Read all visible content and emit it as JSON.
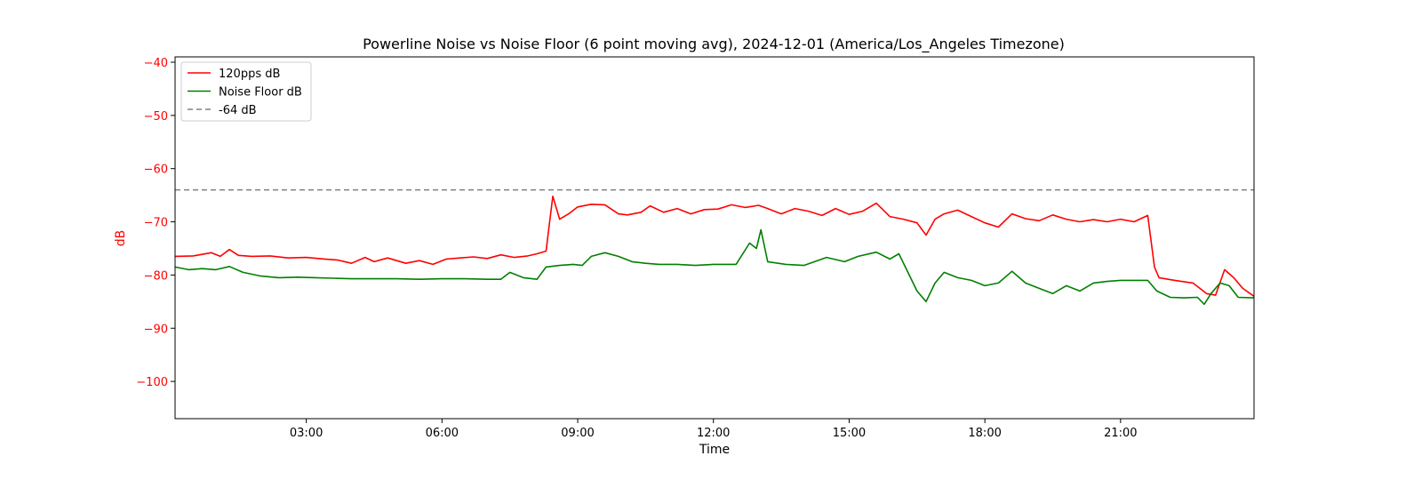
{
  "chart_data": {
    "type": "line",
    "title": "Powerline Noise vs Noise Floor (6 point moving avg), 2024-12-01 (America/Los_Angeles Timezone)",
    "xlabel": "Time",
    "ylabel": "dB",
    "xlim_hours": [
      0.1,
      23.95
    ],
    "ylim": [
      -107,
      -39
    ],
    "x_ticks": [
      {
        "hour": 3,
        "label": "03:00"
      },
      {
        "hour": 6,
        "label": "06:00"
      },
      {
        "hour": 9,
        "label": "09:00"
      },
      {
        "hour": 12,
        "label": "12:00"
      },
      {
        "hour": 15,
        "label": "15:00"
      },
      {
        "hour": 18,
        "label": "18:00"
      },
      {
        "hour": 21,
        "label": "21:00"
      }
    ],
    "y_ticks": [
      -40,
      -50,
      -60,
      -70,
      -80,
      -90,
      -100
    ],
    "y_tick_labels": [
      "−40",
      "−50",
      "−60",
      "−70",
      "−80",
      "−90",
      "−100"
    ],
    "grid": false,
    "legend_position": "top-left",
    "colors": {
      "series_1": "#ff0000",
      "series_2": "#008000",
      "reference": "#808080",
      "y_axis_label": "#ff0000"
    },
    "series": [
      {
        "name": "120pps dB",
        "color": "#ff0000",
        "style": "solid",
        "x": [
          0.1,
          0.5,
          0.9,
          1.1,
          1.3,
          1.5,
          1.8,
          2.2,
          2.6,
          3.0,
          3.4,
          3.7,
          4.0,
          4.3,
          4.5,
          4.8,
          5.2,
          5.5,
          5.8,
          6.1,
          6.4,
          6.7,
          7.0,
          7.3,
          7.6,
          7.9,
          8.1,
          8.3,
          8.45,
          8.6,
          8.8,
          9.0,
          9.3,
          9.6,
          9.9,
          10.1,
          10.4,
          10.6,
          10.9,
          11.2,
          11.5,
          11.8,
          12.1,
          12.4,
          12.7,
          13.0,
          13.2,
          13.5,
          13.8,
          14.1,
          14.4,
          14.7,
          15.0,
          15.3,
          15.6,
          15.9,
          16.2,
          16.5,
          16.7,
          16.9,
          17.1,
          17.4,
          17.7,
          18.0,
          18.3,
          18.6,
          18.9,
          19.2,
          19.5,
          19.8,
          20.1,
          20.4,
          20.7,
          21.0,
          21.3,
          21.6,
          21.75,
          21.85,
          22.2,
          22.6,
          22.9,
          23.1,
          23.3,
          23.5,
          23.7,
          23.95
        ],
        "y": [
          -76.5,
          -76.4,
          -75.8,
          -76.5,
          -75.2,
          -76.3,
          -76.5,
          -76.4,
          -76.8,
          -76.7,
          -77.0,
          -77.2,
          -77.8,
          -76.7,
          -77.5,
          -76.8,
          -77.8,
          -77.3,
          -78.0,
          -77.0,
          -76.8,
          -76.6,
          -76.9,
          -76.2,
          -76.7,
          -76.4,
          -76.0,
          -75.5,
          -65.2,
          -69.5,
          -68.5,
          -67.2,
          -66.7,
          -66.8,
          -68.5,
          -68.7,
          -68.2,
          -67.0,
          -68.2,
          -67.5,
          -68.5,
          -67.7,
          -67.6,
          -66.8,
          -67.3,
          -66.9,
          -67.5,
          -68.5,
          -67.5,
          -68.0,
          -68.8,
          -67.5,
          -68.6,
          -68.0,
          -66.5,
          -69.0,
          -69.5,
          -70.2,
          -72.5,
          -69.5,
          -68.5,
          -67.8,
          -69.0,
          -70.2,
          -71.0,
          -68.5,
          -69.4,
          -69.8,
          -68.7,
          -69.5,
          -70.0,
          -69.6,
          -70.0,
          -69.5,
          -70.0,
          -68.8,
          -78.5,
          -80.5,
          -81.0,
          -81.5,
          -83.5,
          -83.8,
          -79.0,
          -80.5,
          -82.5,
          -84.0
        ]
      },
      {
        "name": "Noise Floor dB",
        "color": "#008000",
        "style": "solid",
        "x": [
          0.1,
          0.4,
          0.7,
          1.0,
          1.3,
          1.6,
          2.0,
          2.4,
          2.8,
          3.2,
          3.6,
          4.0,
          4.5,
          5.0,
          5.5,
          6.0,
          6.5,
          7.0,
          7.3,
          7.5,
          7.8,
          8.1,
          8.3,
          8.6,
          8.9,
          9.1,
          9.3,
          9.6,
          9.9,
          10.2,
          10.5,
          10.8,
          11.2,
          11.6,
          12.0,
          12.5,
          12.8,
          12.95,
          13.05,
          13.2,
          13.6,
          14.0,
          14.5,
          14.9,
          15.2,
          15.6,
          15.9,
          16.1,
          16.3,
          16.5,
          16.7,
          16.9,
          17.1,
          17.4,
          17.7,
          18.0,
          18.3,
          18.6,
          18.9,
          19.2,
          19.5,
          19.8,
          20.1,
          20.4,
          20.7,
          21.0,
          21.3,
          21.6,
          21.8,
          22.1,
          22.4,
          22.7,
          22.85,
          23.0,
          23.2,
          23.4,
          23.6,
          23.95
        ],
        "y": [
          -78.5,
          -79.0,
          -78.8,
          -79.0,
          -78.4,
          -79.5,
          -80.2,
          -80.5,
          -80.4,
          -80.5,
          -80.6,
          -80.7,
          -80.7,
          -80.7,
          -80.8,
          -80.7,
          -80.7,
          -80.8,
          -80.8,
          -79.5,
          -80.5,
          -80.8,
          -78.5,
          -78.2,
          -78.0,
          -78.2,
          -76.5,
          -75.8,
          -76.5,
          -77.5,
          -77.8,
          -78.0,
          -78.0,
          -78.2,
          -78.0,
          -78.0,
          -74.0,
          -75.0,
          -71.5,
          -77.5,
          -78.0,
          -78.2,
          -76.7,
          -77.5,
          -76.5,
          -75.7,
          -77.0,
          -76.0,
          -79.5,
          -83.0,
          -85.0,
          -81.5,
          -79.5,
          -80.5,
          -81.0,
          -82.0,
          -81.5,
          -79.3,
          -81.5,
          -82.5,
          -83.5,
          -82.0,
          -83.0,
          -81.5,
          -81.2,
          -81.0,
          -81.0,
          -81.0,
          -83.0,
          -84.2,
          -84.3,
          -84.2,
          -85.5,
          -83.5,
          -81.5,
          -82.0,
          -84.2,
          -84.3
        ]
      },
      {
        "name": "-64 dB",
        "color": "#808080",
        "style": "dashed",
        "x": [
          0.1,
          23.95
        ],
        "y": [
          -64,
          -64
        ]
      }
    ]
  }
}
